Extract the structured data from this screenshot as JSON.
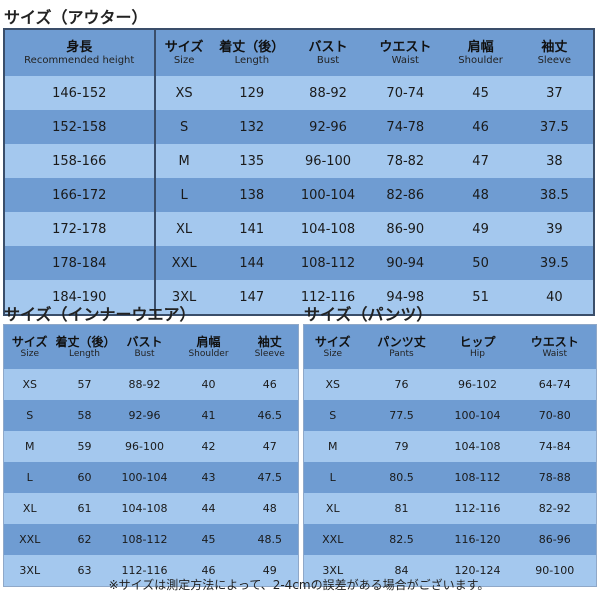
{
  "outer": {
    "title": "サイズ（アウター）",
    "headers": [
      {
        "jp": "身長",
        "en": "Recommended height"
      },
      {
        "jp": "サイズ",
        "en": "Size"
      },
      {
        "jp": "着丈（後）",
        "en": "Length"
      },
      {
        "jp": "バスト",
        "en": "Bust"
      },
      {
        "jp": "ウエスト",
        "en": "Waist"
      },
      {
        "jp": "肩幅",
        "en": "Shoulder"
      },
      {
        "jp": "袖丈",
        "en": "Sleeve"
      }
    ],
    "rows": [
      [
        "146-152",
        "XS",
        "129",
        "88-92",
        "70-74",
        "45",
        "37"
      ],
      [
        "152-158",
        "S",
        "132",
        "92-96",
        "74-78",
        "46",
        "37.5"
      ],
      [
        "158-166",
        "M",
        "135",
        "96-100",
        "78-82",
        "47",
        "38"
      ],
      [
        "166-172",
        "L",
        "138",
        "100-104",
        "82-86",
        "48",
        "38.5"
      ],
      [
        "172-178",
        "XL",
        "141",
        "104-108",
        "86-90",
        "49",
        "39"
      ],
      [
        "178-184",
        "XXL",
        "144",
        "108-112",
        "90-94",
        "50",
        "39.5"
      ],
      [
        "184-190",
        "3XL",
        "147",
        "112-116",
        "94-98",
        "51",
        "40"
      ]
    ]
  },
  "inner": {
    "title": "サイズ（インナーウエア）",
    "headers": [
      {
        "jp": "サイズ",
        "en": "Size"
      },
      {
        "jp": "着丈（後）",
        "en": "Length"
      },
      {
        "jp": "バスト",
        "en": "Bust"
      },
      {
        "jp": "肩幅",
        "en": "Shoulder"
      },
      {
        "jp": "袖丈",
        "en": "Sleeve"
      }
    ],
    "rows": [
      [
        "XS",
        "57",
        "88-92",
        "40",
        "46"
      ],
      [
        "S",
        "58",
        "92-96",
        "41",
        "46.5"
      ],
      [
        "M",
        "59",
        "96-100",
        "42",
        "47"
      ],
      [
        "L",
        "60",
        "100-104",
        "43",
        "47.5"
      ],
      [
        "XL",
        "61",
        "104-108",
        "44",
        "48"
      ],
      [
        "XXL",
        "62",
        "108-112",
        "45",
        "48.5"
      ],
      [
        "3XL",
        "63",
        "112-116",
        "46",
        "49"
      ]
    ]
  },
  "pants": {
    "title": "サイズ（パンツ）",
    "headers": [
      {
        "jp": "サイズ",
        "en": "Size"
      },
      {
        "jp": "パンツ丈",
        "en": "Pants"
      },
      {
        "jp": "ヒップ",
        "en": "Hip"
      },
      {
        "jp": "ウエスト",
        "en": "Waist"
      }
    ],
    "rows": [
      [
        "XS",
        "76",
        "96-102",
        "64-74"
      ],
      [
        "S",
        "77.5",
        "100-104",
        "70-80"
      ],
      [
        "M",
        "79",
        "104-108",
        "74-84"
      ],
      [
        "L",
        "80.5",
        "108-112",
        "78-88"
      ],
      [
        "XL",
        "81",
        "112-116",
        "82-92"
      ],
      [
        "XXL",
        "82.5",
        "116-120",
        "86-96"
      ],
      [
        "3XL",
        "84",
        "120-124",
        "90-100"
      ]
    ]
  },
  "note": "※サイズは測定方法によって、2-4cmの誤差がある場合がございます。",
  "colors": {
    "dark_row": "#6f9cd2",
    "light_row": "#a4c8ee",
    "border": "#3a4e6a"
  }
}
